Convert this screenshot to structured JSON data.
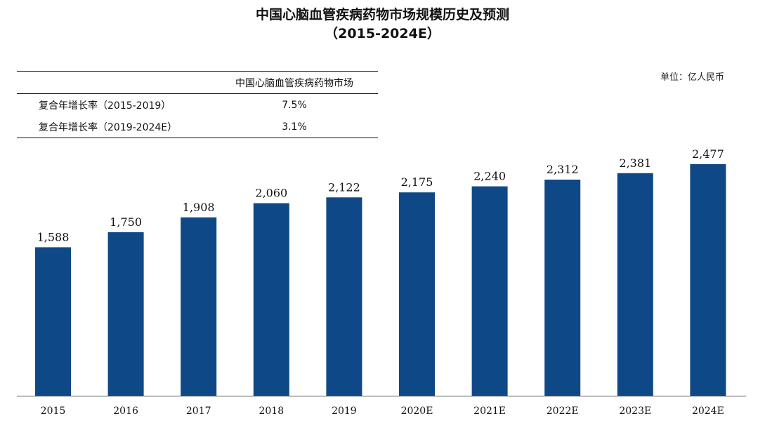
{
  "title": {
    "line1": "中国心脑血管疾病药物市场规模历史及预测",
    "line2": "（2015-2024E）"
  },
  "unit_label": "单位：亿人民币",
  "cagr_table": {
    "header": "中国心脑血管疾病药物市场",
    "rows": [
      {
        "label": "复合年增长率（2015-2019）",
        "value": "7.5%"
      },
      {
        "label": "复合年增长率（2019-2024E）",
        "value": "3.1%"
      }
    ]
  },
  "colors": {
    "bar": "#0f4886",
    "axis": "#555555",
    "text": "#111111"
  },
  "chart_data": {
    "type": "bar",
    "categories": [
      "2015",
      "2016",
      "2017",
      "2018",
      "2019",
      "2020E",
      "2021E",
      "2022E",
      "2023E",
      "2024E"
    ],
    "values": [
      1588,
      1750,
      1908,
      2060,
      2122,
      2175,
      2240,
      2312,
      2381,
      2477
    ],
    "value_labels": [
      "1,588",
      "1,750",
      "1,908",
      "2,060",
      "2,122",
      "2,175",
      "2,240",
      "2,312",
      "2,381",
      "2,477"
    ],
    "ylim": [
      0,
      2750
    ],
    "grid": false,
    "legend": "none"
  }
}
